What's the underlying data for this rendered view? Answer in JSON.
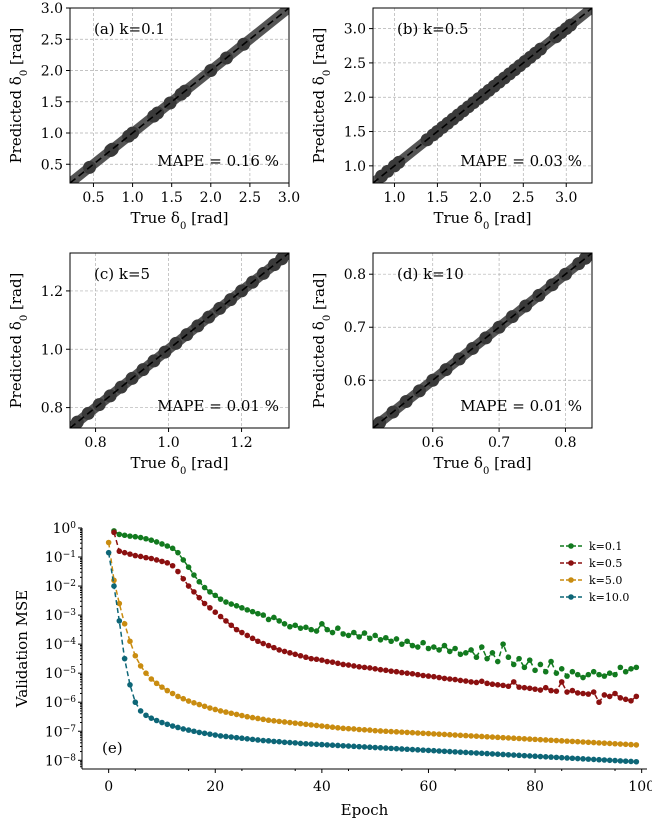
{
  "colors": {
    "band": "#555555",
    "points": "#3a3a3a",
    "diag": "#000000",
    "grid": "#b0b0b0"
  },
  "chart_data": [
    {
      "type": "scatter",
      "panel_label": "(a) k=0.1",
      "annotation": "MAPE = 0.16 %",
      "xlabel": "True δ0 [rad]",
      "ylabel": "Predicted δ0 [rad]",
      "xlim": [
        0.2,
        3.0
      ],
      "ylim": [
        0.2,
        3.0
      ],
      "xticks": [
        0.5,
        1.0,
        1.5,
        2.0,
        2.5,
        3.0
      ],
      "yticks": [
        0.5,
        1.0,
        1.5,
        2.0,
        2.5,
        3.0
      ],
      "tick_labels": [
        "0.5",
        "1.0",
        "1.5",
        "2.0",
        "2.5",
        "3.0"
      ],
      "grid": true,
      "points": [
        0.45,
        0.72,
        0.74,
        0.95,
        1.0,
        1.27,
        1.32,
        1.48,
        1.62,
        1.67,
        2.0,
        2.2,
        2.42
      ]
    },
    {
      "type": "scatter",
      "panel_label": "(b) k=0.5",
      "annotation": "MAPE = 0.03 %",
      "xlabel": "True δ0 [rad]",
      "ylabel": "Predicted δ0 [rad]",
      "xlim": [
        0.75,
        3.3
      ],
      "ylim": [
        0.75,
        3.3
      ],
      "xticks": [
        1.0,
        1.5,
        2.0,
        2.5,
        3.0
      ],
      "yticks": [
        1.0,
        1.5,
        2.0,
        2.5,
        3.0
      ],
      "tick_labels": [
        "1.0",
        "1.5",
        "2.0",
        "2.5",
        "3.0"
      ],
      "grid": true,
      "points": [
        0.85,
        0.92,
        1.0,
        1.05,
        1.38,
        1.45,
        1.5,
        1.56,
        1.62,
        1.68,
        1.74,
        1.8,
        1.86,
        1.92,
        1.98,
        2.04,
        2.1,
        2.16,
        2.22,
        2.28,
        2.34,
        2.4,
        2.46,
        2.52,
        2.58,
        2.64,
        2.7,
        2.88,
        2.94,
        3.0,
        3.05
      ]
    },
    {
      "type": "scatter",
      "panel_label": "(c) k=5",
      "annotation": "MAPE = 0.01 %",
      "xlabel": "True δ0 [rad]",
      "ylabel": "Predicted δ0 [rad]",
      "xlim": [
        0.73,
        1.33
      ],
      "ylim": [
        0.73,
        1.33
      ],
      "xticks": [
        0.8,
        1.0,
        1.2
      ],
      "yticks": [
        0.8,
        1.0,
        1.2
      ],
      "tick_labels": [
        "0.8",
        "1.0",
        "1.2"
      ],
      "grid": true,
      "points": [
        0.75,
        0.78,
        0.81,
        0.84,
        0.87,
        0.9,
        0.93,
        0.96,
        0.99,
        1.02,
        1.05,
        1.08,
        1.11,
        1.14,
        1.17,
        1.2,
        1.23,
        1.26,
        1.29,
        1.31
      ]
    },
    {
      "type": "scatter",
      "panel_label": "(d) k=10",
      "annotation": "MAPE = 0.01 %",
      "xlabel": "True δ0 [rad]",
      "ylabel": "Predicted δ0 [rad]",
      "xlim": [
        0.51,
        0.84
      ],
      "ylim": [
        0.51,
        0.84
      ],
      "xticks": [
        0.6,
        0.7,
        0.8
      ],
      "yticks": [
        0.6,
        0.7,
        0.8
      ],
      "tick_labels": [
        "0.6",
        "0.7",
        "0.8"
      ],
      "grid": true,
      "points": [
        0.52,
        0.54,
        0.56,
        0.58,
        0.6,
        0.62,
        0.64,
        0.66,
        0.68,
        0.7,
        0.72,
        0.74,
        0.76,
        0.78,
        0.8,
        0.82,
        0.83
      ]
    },
    {
      "type": "line",
      "panel_label": "(e)",
      "xlabel": "Epoch",
      "ylabel": "Validation MSE",
      "xlim": [
        -5,
        101
      ],
      "ylim_log10": [
        -8.3,
        0.0
      ],
      "xticks": [
        0,
        20,
        40,
        60,
        80,
        100
      ],
      "xtick_labels": [
        "0",
        "20",
        "40",
        "60",
        "80",
        "100"
      ],
      "yticks_exp": [
        0,
        -1,
        -2,
        -3,
        -4,
        -5,
        -6,
        -7,
        -8
      ],
      "ytick_labels": [
        "10",
        "10",
        "10",
        "10",
        "10",
        "10",
        "10",
        "10",
        "10"
      ],
      "ytick_exps": [
        "0",
        "−1",
        "−2",
        "−3",
        "−4",
        "−5",
        "−6",
        "−7",
        "−8"
      ],
      "yscale": "log",
      "legend_position": "top-right",
      "series": [
        {
          "name": "k=0.1",
          "color": "#127a1f",
          "first_epoch": 1,
          "log10_values": [
            -0.1,
            -0.22,
            -0.25,
            -0.28,
            -0.3,
            -0.33,
            -0.37,
            -0.42,
            -0.48,
            -0.55,
            -0.62,
            -0.7,
            -0.85,
            -1.1,
            -1.35,
            -1.62,
            -1.85,
            -2.05,
            -2.2,
            -2.32,
            -2.45,
            -2.55,
            -2.62,
            -2.68,
            -2.75,
            -2.82,
            -2.88,
            -2.95,
            -3.0,
            -3.15,
            -3.08,
            -3.2,
            -3.3,
            -3.4,
            -3.35,
            -3.45,
            -3.42,
            -3.5,
            -3.55,
            -3.3,
            -3.5,
            -3.6,
            -3.45,
            -3.65,
            -3.7,
            -3.6,
            -3.75,
            -3.62,
            -3.8,
            -3.7,
            -3.85,
            -3.78,
            -3.9,
            -3.82,
            -4.0,
            -3.9,
            -4.05,
            -4.1,
            -3.95,
            -4.15,
            -4.1,
            -4.2,
            -4.05,
            -4.25,
            -4.15,
            -4.35,
            -4.3,
            -4.2,
            -4.45,
            -4.1,
            -4.5,
            -4.3,
            -4.6,
            -4.0,
            -4.45,
            -4.7,
            -4.5,
            -4.8,
            -4.55,
            -4.9,
            -4.7,
            -4.95,
            -4.6,
            -5.0,
            -4.85,
            -5.1,
            -4.95,
            -5.05,
            -5.15,
            -5.05,
            -4.95,
            -5.05,
            -5.1,
            -5.0,
            -5.05,
            -4.8,
            -4.95,
            -4.85,
            -4.8
          ]
        },
        {
          "name": "k=0.5",
          "color": "#8b1010",
          "first_epoch": 1,
          "log10_values": [
            -0.15,
            -0.8,
            -0.85,
            -0.9,
            -0.95,
            -0.98,
            -1.02,
            -1.05,
            -1.1,
            -1.15,
            -1.2,
            -1.3,
            -1.5,
            -1.75,
            -2.0,
            -2.2,
            -2.4,
            -2.6,
            -2.75,
            -2.9,
            -3.05,
            -3.2,
            -3.35,
            -3.5,
            -3.6,
            -3.7,
            -3.8,
            -3.9,
            -3.98,
            -4.05,
            -4.12,
            -4.2,
            -4.25,
            -4.3,
            -4.35,
            -4.4,
            -4.45,
            -4.5,
            -4.52,
            -4.55,
            -4.6,
            -4.62,
            -4.66,
            -4.7,
            -4.72,
            -4.75,
            -4.78,
            -4.8,
            -4.82,
            -4.85,
            -4.88,
            -4.9,
            -4.93,
            -4.95,
            -4.98,
            -5.0,
            -5.02,
            -5.05,
            -5.08,
            -5.1,
            -5.12,
            -5.15,
            -5.18,
            -5.2,
            -5.22,
            -5.25,
            -5.27,
            -5.3,
            -5.32,
            -5.28,
            -5.35,
            -5.38,
            -5.4,
            -5.42,
            -5.45,
            -5.3,
            -5.48,
            -5.5,
            -5.52,
            -5.55,
            -5.58,
            -5.5,
            -5.6,
            -5.62,
            -5.3,
            -5.65,
            -5.6,
            -5.68,
            -5.7,
            -5.72,
            -5.65,
            -6.0,
            -5.75,
            -5.8,
            -5.7,
            -5.85,
            -5.9,
            -5.95,
            -5.8
          ]
        },
        {
          "name": "k=5.0",
          "color": "#c98c10",
          "first_epoch": 0,
          "log10_values": [
            -0.5,
            -1.8,
            -2.6,
            -3.3,
            -3.9,
            -4.4,
            -4.75,
            -5.0,
            -5.2,
            -5.35,
            -5.48,
            -5.6,
            -5.7,
            -5.8,
            -5.88,
            -5.96,
            -6.02,
            -6.08,
            -6.14,
            -6.2,
            -6.25,
            -6.3,
            -6.34,
            -6.38,
            -6.42,
            -6.46,
            -6.5,
            -6.53,
            -6.56,
            -6.59,
            -6.62,
            -6.64,
            -6.66,
            -6.68,
            -6.7,
            -6.72,
            -6.74,
            -6.76,
            -6.78,
            -6.8,
            -6.82,
            -6.84,
            -6.86,
            -6.88,
            -6.9,
            -6.91,
            -6.92,
            -6.94,
            -6.95,
            -6.96,
            -6.98,
            -6.99,
            -7.0,
            -7.01,
            -7.02,
            -7.03,
            -7.04,
            -7.05,
            -7.06,
            -7.07,
            -7.08,
            -7.09,
            -7.1,
            -7.11,
            -7.12,
            -7.13,
            -7.14,
            -7.15,
            -7.16,
            -7.17,
            -7.18,
            -7.19,
            -7.2,
            -7.21,
            -7.22,
            -7.23,
            -7.24,
            -7.25,
            -7.26,
            -7.27,
            -7.28,
            -7.29,
            -7.3,
            -7.31,
            -7.32,
            -7.33,
            -7.34,
            -7.35,
            -7.36,
            -7.37,
            -7.38,
            -7.39,
            -7.4,
            -7.41,
            -7.42,
            -7.43,
            -7.44,
            -7.45,
            -7.46,
            -7.47
          ]
        },
        {
          "name": "k=10.0",
          "color": "#0d6677",
          "first_epoch": 0,
          "log10_values": [
            -0.85,
            -2.0,
            -3.2,
            -4.5,
            -5.4,
            -6.0,
            -6.3,
            -6.45,
            -6.55,
            -6.63,
            -6.7,
            -6.76,
            -6.82,
            -6.87,
            -6.92,
            -6.96,
            -7.0,
            -7.04,
            -7.07,
            -7.1,
            -7.13,
            -7.16,
            -7.18,
            -7.2,
            -7.22,
            -7.24,
            -7.26,
            -7.28,
            -7.3,
            -7.32,
            -7.33,
            -7.35,
            -7.36,
            -7.38,
            -7.39,
            -7.4,
            -7.42,
            -7.43,
            -7.44,
            -7.45,
            -7.46,
            -7.47,
            -7.48,
            -7.49,
            -7.5,
            -7.51,
            -7.52,
            -7.53,
            -7.54,
            -7.55,
            -7.56,
            -7.57,
            -7.58,
            -7.59,
            -7.6,
            -7.61,
            -7.62,
            -7.63,
            -7.64,
            -7.65,
            -7.66,
            -7.67,
            -7.68,
            -7.69,
            -7.7,
            -7.71,
            -7.72,
            -7.73,
            -7.74,
            -7.75,
            -7.76,
            -7.77,
            -7.78,
            -7.79,
            -7.8,
            -7.81,
            -7.82,
            -7.83,
            -7.84,
            -7.85,
            -7.86,
            -7.87,
            -7.88,
            -7.89,
            -7.9,
            -7.91,
            -7.92,
            -7.93,
            -7.94,
            -7.95,
            -7.96,
            -7.97,
            -7.98,
            -7.99,
            -8.0,
            -8.01,
            -8.02,
            -8.03,
            -8.04,
            -8.05
          ]
        }
      ]
    }
  ]
}
